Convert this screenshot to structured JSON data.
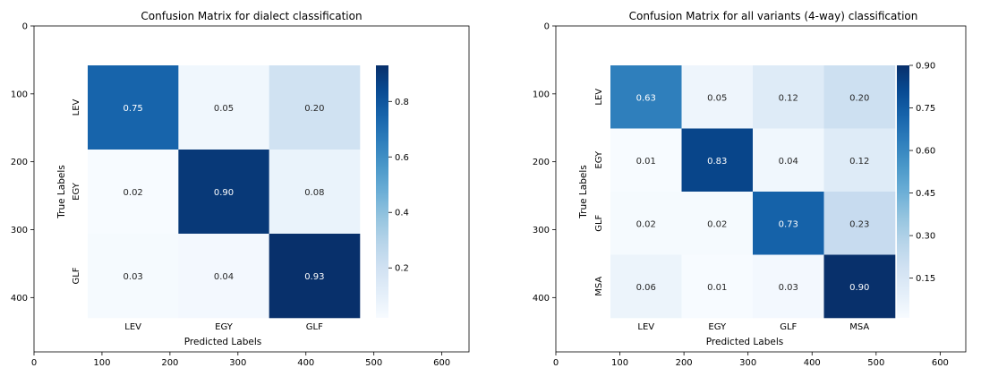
{
  "chart_data": [
    {
      "type": "heatmap",
      "title": "Confusion Matrix for dialect classification",
      "xlabel": "Predicted Labels",
      "ylabel": "True Labels",
      "row_labels": [
        "LEV",
        "EGY",
        "GLF"
      ],
      "col_labels": [
        "LEV",
        "EGY",
        "GLF"
      ],
      "values": [
        [
          0.75,
          0.05,
          0.2
        ],
        [
          0.02,
          0.9,
          0.08
        ],
        [
          0.03,
          0.04,
          0.93
        ]
      ],
      "cell_text": [
        [
          "0.75",
          "0.05",
          "0.20"
        ],
        [
          "0.02",
          "0.90",
          "0.08"
        ],
        [
          "0.03",
          "0.04",
          "0.93"
        ]
      ],
      "outer_x_ticks": [
        "0",
        "100",
        "200",
        "300",
        "400",
        "500",
        "600"
      ],
      "outer_y_ticks": [
        "0",
        "100",
        "200",
        "300",
        "400"
      ],
      "xlim": [
        0,
        640
      ],
      "ylim": [
        480,
        0
      ],
      "colorbar": {
        "min": 0.02,
        "max": 0.93,
        "ticks": [
          0.2,
          0.4,
          0.6,
          0.8
        ],
        "tick_labels": [
          "0.2",
          "0.4",
          "0.6",
          "0.8"
        ]
      },
      "colormap": "Blues",
      "grid": false
    },
    {
      "type": "heatmap",
      "title": "Confusion Matrix for all variants (4-way) classification",
      "xlabel": "Predicted Labels",
      "ylabel": "True Labels",
      "row_labels": [
        "LEV",
        "EGY",
        "GLF",
        "MSA"
      ],
      "col_labels": [
        "LEV",
        "EGY",
        "GLF",
        "MSA"
      ],
      "values": [
        [
          0.63,
          0.05,
          0.12,
          0.2
        ],
        [
          0.01,
          0.83,
          0.04,
          0.12
        ],
        [
          0.02,
          0.02,
          0.73,
          0.23
        ],
        [
          0.06,
          0.01,
          0.03,
          0.9
        ]
      ],
      "cell_text": [
        [
          "0.63",
          "0.05",
          "0.12",
          "0.20"
        ],
        [
          "0.01",
          "0.83",
          "0.04",
          "0.12"
        ],
        [
          "0.02",
          "0.02",
          "0.73",
          "0.23"
        ],
        [
          "0.06",
          "0.01",
          "0.03",
          "0.90"
        ]
      ],
      "outer_x_ticks": [
        "0",
        "100",
        "200",
        "300",
        "400",
        "500",
        "600"
      ],
      "outer_y_ticks": [
        "0",
        "100",
        "200",
        "300",
        "400"
      ],
      "xlim": [
        0,
        640
      ],
      "ylim": [
        480,
        0
      ],
      "colorbar": {
        "min": 0.01,
        "max": 0.9,
        "ticks": [
          0.15,
          0.3,
          0.45,
          0.6,
          0.75,
          0.9
        ],
        "tick_labels": [
          "0.15",
          "0.30",
          "0.45",
          "0.60",
          "0.75",
          "0.90"
        ]
      },
      "colormap": "Blues",
      "grid": false
    }
  ]
}
